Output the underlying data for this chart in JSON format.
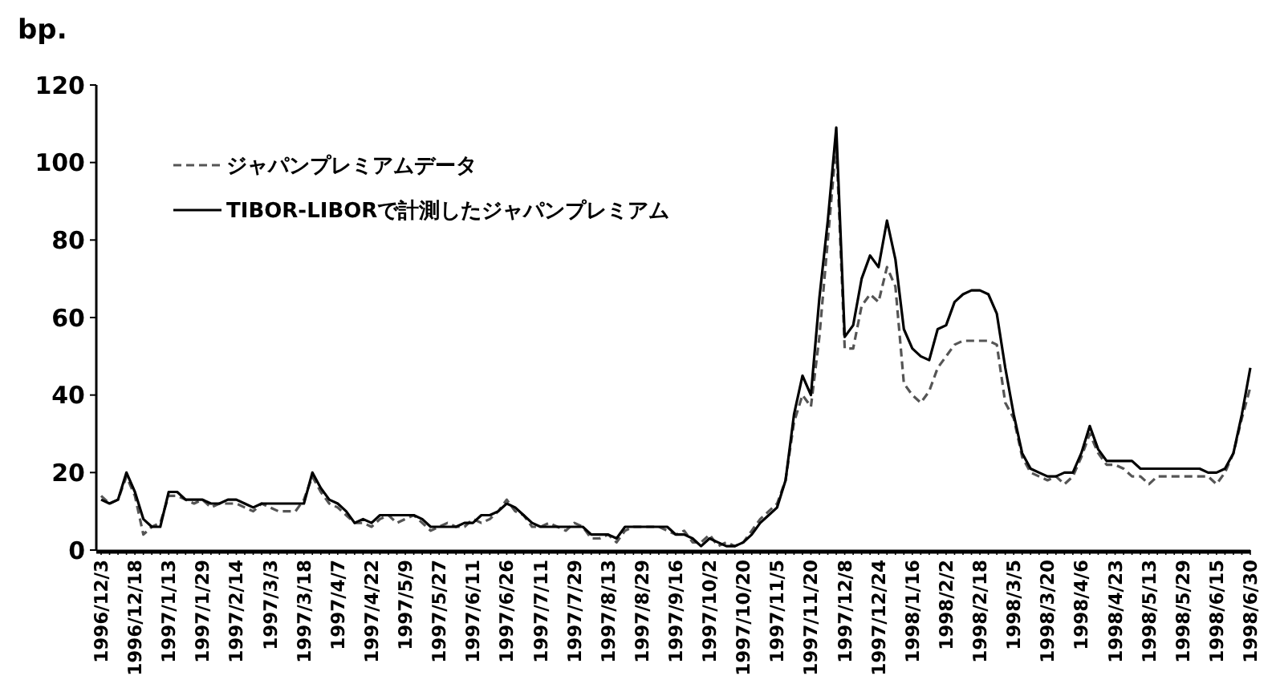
{
  "chart_data": {
    "type": "line",
    "ylabel": "bp.",
    "categories": [
      "1996/12/3",
      null,
      null,
      null,
      "1996/12/18",
      null,
      null,
      null,
      "1997/1/13",
      null,
      null,
      null,
      "1997/1/29",
      null,
      null,
      null,
      "1997/2/14",
      null,
      null,
      null,
      "1997/3/3",
      null,
      null,
      null,
      "1997/3/18",
      null,
      null,
      null,
      "1997/4/7",
      null,
      null,
      null,
      "1997/4/22",
      null,
      null,
      null,
      "1997/5/9",
      null,
      null,
      null,
      "1997/5/27",
      null,
      null,
      null,
      "1997/6/11",
      null,
      null,
      null,
      "1997/6/26",
      null,
      null,
      null,
      "1997/7/11",
      null,
      null,
      null,
      "1997/7/29",
      null,
      null,
      null,
      "1997/8/13",
      null,
      null,
      null,
      "1997/8/29",
      null,
      null,
      null,
      "1997/9/16",
      null,
      null,
      null,
      "1997/10/2",
      null,
      null,
      null,
      "1997/10/20",
      null,
      null,
      null,
      "1997/11/5",
      null,
      null,
      null,
      "1997/11/20",
      null,
      null,
      null,
      "1997/12/8",
      null,
      null,
      null,
      "1997/12/24",
      null,
      null,
      null,
      "1998/1/16",
      null,
      null,
      null,
      "1998/2/2",
      null,
      null,
      null,
      "1998/2/18",
      null,
      null,
      null,
      "1998/3/5",
      null,
      null,
      null,
      "1998/3/20",
      null,
      null,
      null,
      "1998/4/6",
      null,
      null,
      null,
      "1998/4/23",
      null,
      null,
      null,
      "1998/5/13",
      null,
      null,
      null,
      "1998/5/29",
      null,
      null,
      null,
      "1998/6/15",
      null,
      null,
      null,
      "1998/6/30"
    ],
    "series": [
      {
        "name": "ジャパンプレミアムデータ",
        "color": "#555555",
        "line_style": "dashed",
        "values": [
          14,
          12,
          13,
          19,
          14,
          4,
          6,
          7,
          14,
          14,
          13,
          12,
          13,
          11,
          12,
          12,
          12,
          11,
          10,
          12,
          11,
          10,
          10,
          10,
          13,
          19,
          15,
          12,
          11,
          9,
          7,
          7,
          6,
          8,
          9,
          7,
          8,
          9,
          7,
          5,
          6,
          7,
          6,
          6,
          8,
          7,
          8,
          10,
          13,
          10,
          9,
          6,
          6,
          7,
          6,
          5,
          7,
          6,
          3,
          3,
          4,
          2,
          5,
          6,
          6,
          6,
          6,
          5,
          4,
          5,
          2,
          2,
          4,
          1,
          2,
          1,
          2,
          5,
          8,
          10,
          12,
          18,
          33,
          40,
          37,
          55,
          80,
          105,
          52,
          52,
          63,
          66,
          64,
          73,
          68,
          43,
          40,
          38,
          41,
          47,
          50,
          53,
          54,
          54,
          54,
          54,
          53,
          38,
          34,
          24,
          20,
          19,
          18,
          19,
          17,
          19,
          24,
          30,
          25,
          22,
          22,
          21,
          19,
          19,
          17,
          19,
          19,
          19,
          19,
          19,
          19,
          19,
          17,
          20,
          25,
          34,
          42
        ]
      },
      {
        "name": "TIBOR-LIBORで計測したジャパンプレミアム",
        "color": "#000000",
        "line_style": "solid",
        "values": [
          13,
          12,
          13,
          20,
          15,
          8,
          6,
          6,
          15,
          15,
          13,
          13,
          13,
          12,
          12,
          13,
          13,
          12,
          11,
          12,
          12,
          12,
          12,
          12,
          12,
          20,
          16,
          13,
          12,
          10,
          7,
          8,
          7,
          9,
          9,
          9,
          9,
          9,
          8,
          6,
          6,
          6,
          6,
          7,
          7,
          9,
          9,
          10,
          12,
          11,
          9,
          7,
          6,
          6,
          6,
          6,
          6,
          6,
          4,
          4,
          4,
          3,
          6,
          6,
          6,
          6,
          6,
          6,
          4,
          4,
          3,
          1,
          3,
          2,
          1,
          1,
          2,
          4,
          7,
          9,
          11,
          18,
          35,
          45,
          40,
          65,
          85,
          109,
          55,
          58,
          70,
          76,
          73,
          85,
          75,
          57,
          52,
          50,
          49,
          57,
          58,
          64,
          66,
          67,
          67,
          66,
          61,
          47,
          35,
          25,
          21,
          20,
          19,
          19,
          20,
          20,
          25,
          32,
          26,
          23,
          23,
          23,
          23,
          21,
          21,
          21,
          21,
          21,
          21,
          21,
          21,
          20,
          20,
          21,
          25,
          35,
          47
        ]
      }
    ],
    "ylim": [
      0,
      120
    ],
    "yticks": [
      0,
      20,
      40,
      60,
      80,
      100,
      120
    ],
    "grid": false,
    "legend": "top left",
    "marker": "none"
  }
}
